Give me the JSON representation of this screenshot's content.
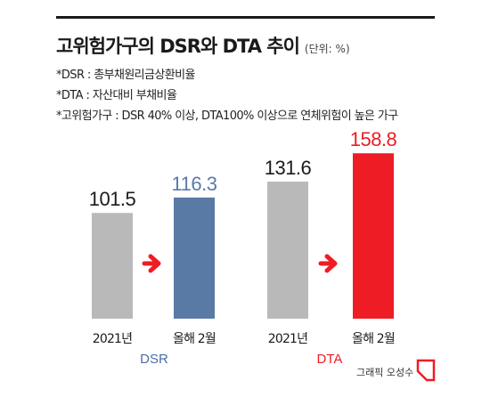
{
  "header": {
    "title": "고위험가구의 DSR와 DTA 추이",
    "unit": "(단위: %)"
  },
  "notes": [
    "*DSR : 총부채원리금상환비율",
    "*DTA : 자산대비 부채비율",
    "*고위험가구 : DSR 40% 이상, DTA100% 이상으로 연체위험이 높은 가구"
  ],
  "chart_data": {
    "type": "bar",
    "title": "고위험가구의 DSR와 DTA 추이",
    "unit": "(단위: %)",
    "ylim": [
      0,
      160
    ],
    "groups": [
      {
        "name": "DSR",
        "label_color": "#4a6fa5",
        "bars": [
          {
            "category": "2021년",
            "value": 101.5,
            "value_label": "101.5",
            "color": "#b9b9b9",
            "label_color": "#1a1a1a"
          },
          {
            "category": "올해 2월",
            "value": 116.3,
            "value_label": "116.3",
            "color": "#5a7aa6",
            "label_color": "#5a7aa6"
          }
        ]
      },
      {
        "name": "DTA",
        "label_color": "#ee1c24",
        "bars": [
          {
            "category": "2021년",
            "value": 131.6,
            "value_label": "131.6",
            "color": "#b9b9b9",
            "label_color": "#1a1a1a"
          },
          {
            "category": "올해 2월",
            "value": 158.8,
            "value_label": "158.8",
            "color": "#ee1c24",
            "label_color": "#ee1c24"
          }
        ]
      }
    ],
    "arrow_color": "#ee1c24",
    "grid": false,
    "legend": "none"
  },
  "footer": {
    "credit": "그래픽 오성수",
    "logo_color": "#ee1c24"
  }
}
